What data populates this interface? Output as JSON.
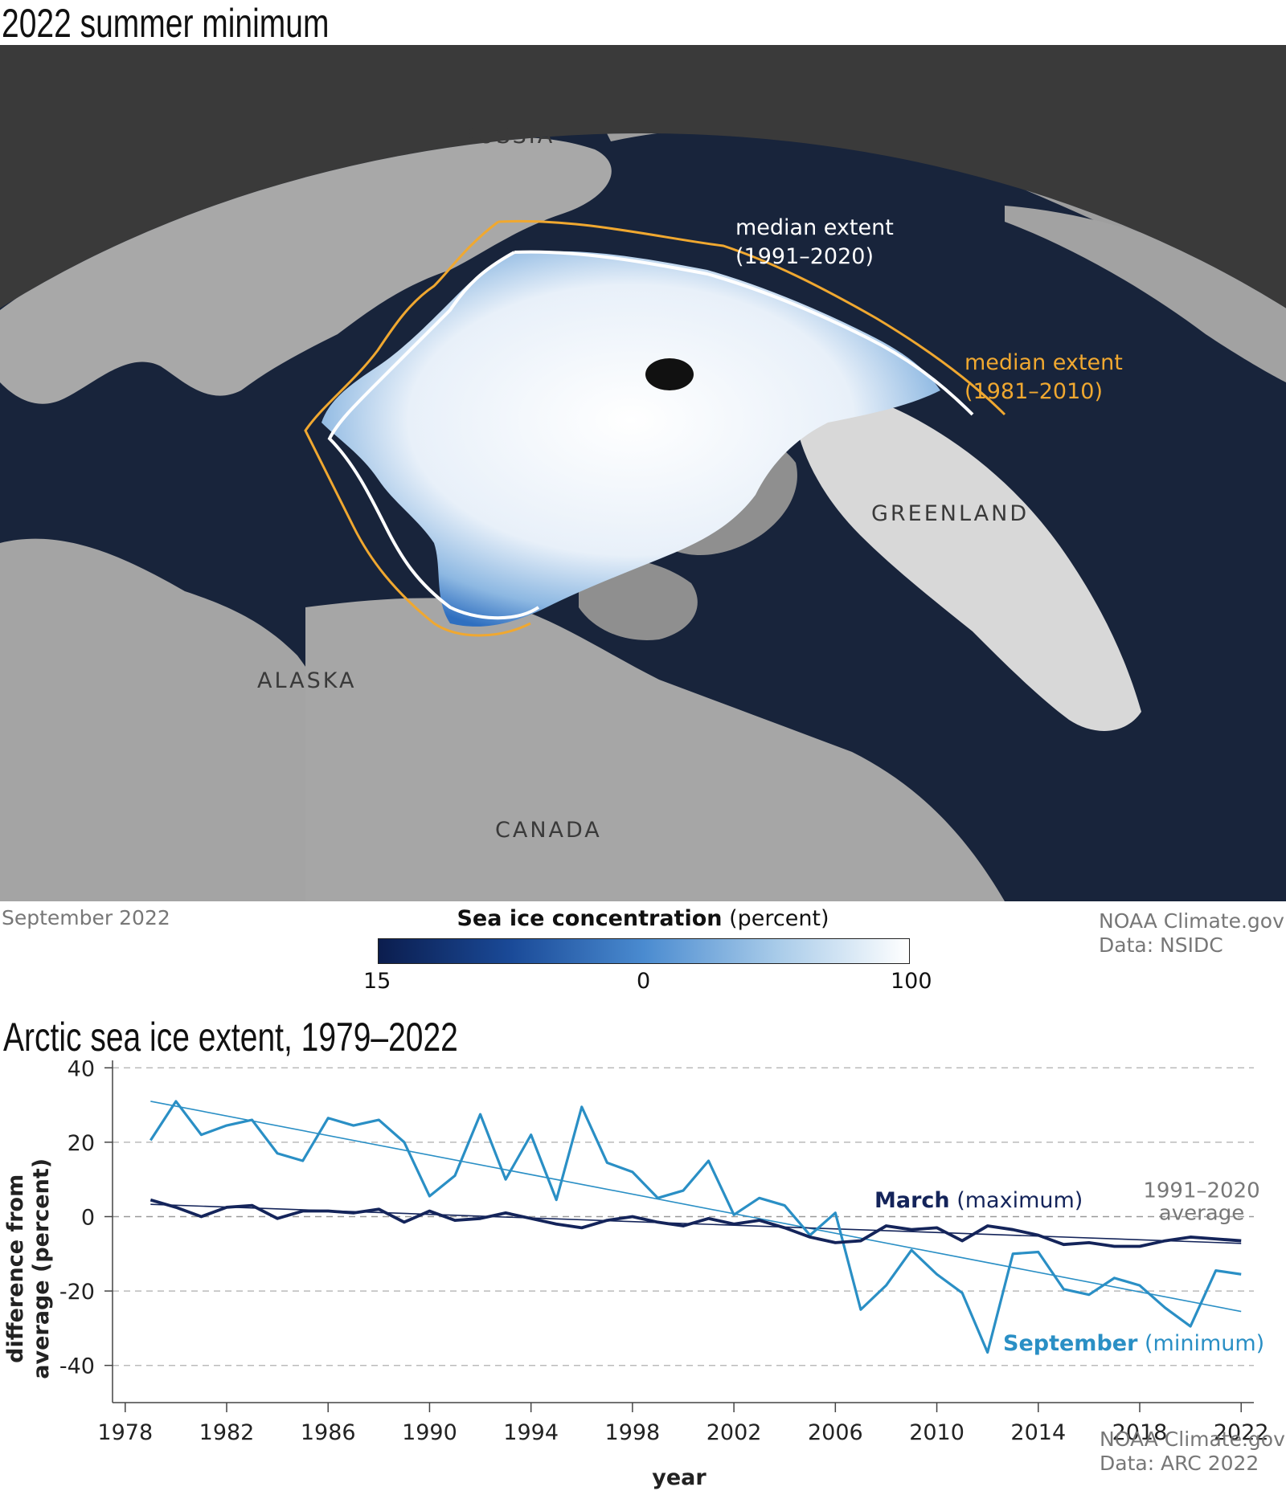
{
  "map": {
    "title": "2022 summer minimum",
    "labels": {
      "russia": "RUSSIA",
      "greenland": "GREENLAND",
      "alaska": "ALASKA",
      "canada": "CANADA"
    },
    "extent_1991": [
      "median extent",
      "(1991–2020)"
    ],
    "extent_1981": [
      "median extent",
      "(1981–2010)"
    ],
    "date": "September 2022",
    "credit": [
      "NOAA Climate.gov",
      "Data: NSIDC"
    ],
    "legend": {
      "title_bold": "Sea ice concentration",
      "title_rest": " (percent)",
      "ticks": [
        "15",
        "0",
        "100"
      ]
    },
    "colors": {
      "ocean": "#18243b",
      "land": "#a6a6a6",
      "background": "#3a3a3a",
      "ice_high": "#ffffff",
      "ice_low": "#0b1d4e",
      "median_1991": "#ffffff",
      "median_1981": "#f0a830"
    }
  },
  "chart_data": {
    "type": "line",
    "title": "Arctic sea ice extent, 1979–2022",
    "xlabel": "year",
    "ylabel": [
      "difference from",
      "average (percent)"
    ],
    "xlim": [
      1977.5,
      2022.5
    ],
    "ylim": [
      -50,
      42
    ],
    "x_ticks": [
      1978,
      1982,
      1986,
      1990,
      1994,
      1998,
      2002,
      2006,
      2010,
      2014,
      2018,
      2022
    ],
    "y_ticks": [
      40,
      20,
      0,
      -20,
      -40
    ],
    "grid": "horizontal dashed",
    "x": [
      1979,
      1980,
      1981,
      1982,
      1983,
      1984,
      1985,
      1986,
      1987,
      1988,
      1989,
      1990,
      1991,
      1992,
      1993,
      1994,
      1995,
      1996,
      1997,
      1998,
      1999,
      2000,
      2001,
      2002,
      2003,
      2004,
      2005,
      2006,
      2007,
      2008,
      2009,
      2010,
      2011,
      2012,
      2013,
      2014,
      2015,
      2016,
      2017,
      2018,
      2019,
      2020,
      2021,
      2022
    ],
    "series": [
      {
        "name": "September",
        "name_note": "(minimum)",
        "color": "#2a8fc5",
        "values": [
          20.5,
          31,
          22,
          24.5,
          26,
          17,
          15,
          26.5,
          24.5,
          26,
          20,
          5.5,
          11,
          27.5,
          10,
          22,
          4.5,
          29.5,
          14.5,
          12,
          5,
          7,
          15,
          0.5,
          5,
          3,
          -5,
          1,
          -25,
          -18.5,
          -9,
          -15.5,
          -20.5,
          -36.5,
          -10,
          -9.5,
          -19.5,
          -21,
          -16.5,
          -18.5,
          -24.5,
          -29.5,
          -14.5,
          -15.5
        ],
        "trend": [
          31,
          -25.5
        ]
      },
      {
        "name": "March",
        "name_note": "(maximum)",
        "color": "#14245a",
        "values": [
          4.5,
          2.5,
          0,
          2.5,
          3,
          -0.5,
          1.5,
          1.5,
          1,
          2,
          -1.5,
          1.5,
          -1,
          -0.5,
          1,
          -0.5,
          -2,
          -3,
          -1,
          0,
          -1.5,
          -2.5,
          -0.5,
          -2,
          -1,
          -3,
          -5.5,
          -7,
          -6.5,
          -2.5,
          -3.5,
          -3,
          -6.5,
          -2.5,
          -3.5,
          -5,
          -7.5,
          -7,
          -8,
          -8,
          -6.5,
          -5.5,
          -6,
          -6.5
        ],
        "trend": [
          3.3,
          -7.2
        ]
      }
    ],
    "baseline_label": [
      "1991–2020",
      "average"
    ],
    "credit": [
      "NOAA Climate.gov",
      "Data: ARC 2022"
    ]
  }
}
